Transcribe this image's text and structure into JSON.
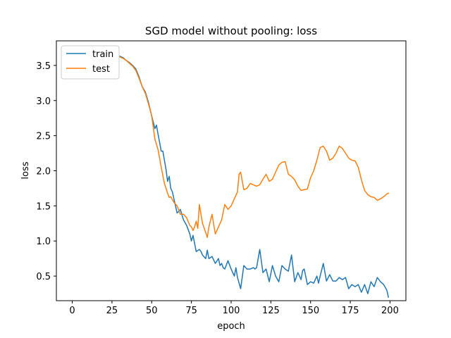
{
  "chart_data": {
    "type": "line",
    "title": "SGD model without pooling: loss",
    "xlabel": "epoch",
    "ylabel": "loss",
    "xlim": [
      -10,
      210
    ],
    "ylim": [
      0.15,
      3.85
    ],
    "xticks": [
      0,
      25,
      50,
      75,
      100,
      125,
      150,
      175,
      200
    ],
    "yticks": [
      0.5,
      1.0,
      1.5,
      2.0,
      2.5,
      3.0,
      3.5
    ],
    "xtick_labels": [
      "0",
      "25",
      "50",
      "75",
      "100",
      "125",
      "150",
      "175",
      "200"
    ],
    "ytick_labels": [
      "0.5",
      "1.0",
      "1.5",
      "2.0",
      "2.5",
      "3.0",
      "3.5"
    ],
    "grid": false,
    "legend": {
      "position": "top-left"
    },
    "series": [
      {
        "name": "train",
        "color": "#1f77b4",
        "x": [
          30,
          32,
          34,
          36,
          38,
          40,
          42,
          44,
          46,
          48,
          50,
          52,
          53,
          54,
          56,
          57,
          58,
          59,
          60,
          61,
          62,
          63,
          64,
          66,
          67,
          68,
          70,
          72,
          74,
          75,
          76,
          78,
          80,
          81,
          82,
          84,
          85,
          86,
          88,
          90,
          92,
          93,
          94,
          95,
          96,
          98,
          100,
          102,
          103,
          104,
          106,
          108,
          110,
          112,
          114,
          115,
          116,
          118,
          120,
          122,
          124,
          126,
          128,
          130,
          132,
          134,
          136,
          138,
          140,
          142,
          144,
          145,
          146,
          148,
          150,
          152,
          154,
          155,
          156,
          158,
          160,
          162,
          164,
          166,
          168,
          170,
          172,
          174,
          176,
          178,
          180,
          182,
          184,
          186,
          188,
          190,
          192,
          194,
          196,
          198,
          199
        ],
        "y": [
          3.63,
          3.61,
          3.57,
          3.54,
          3.5,
          3.45,
          3.34,
          3.2,
          3.12,
          2.97,
          2.78,
          2.6,
          2.65,
          2.52,
          2.28,
          2.28,
          2.15,
          2.02,
          1.85,
          1.92,
          1.75,
          1.7,
          1.6,
          1.4,
          1.42,
          1.45,
          1.3,
          1.22,
          1.1,
          1.0,
          1.08,
          0.85,
          0.88,
          0.85,
          0.8,
          0.75,
          0.87,
          0.75,
          0.78,
          0.68,
          0.75,
          0.65,
          0.68,
          0.62,
          0.6,
          0.72,
          0.6,
          0.5,
          0.62,
          0.48,
          0.32,
          0.65,
          0.6,
          0.6,
          0.62,
          0.6,
          0.62,
          0.88,
          0.55,
          0.6,
          0.42,
          0.65,
          0.5,
          0.42,
          0.65,
          0.6,
          0.57,
          0.8,
          0.42,
          0.55,
          0.45,
          0.58,
          0.6,
          0.38,
          0.42,
          0.4,
          0.5,
          0.4,
          0.5,
          0.68,
          0.43,
          0.52,
          0.43,
          0.43,
          0.48,
          0.45,
          0.48,
          0.32,
          0.38,
          0.35,
          0.38,
          0.27,
          0.38,
          0.25,
          0.42,
          0.35,
          0.48,
          0.42,
          0.38,
          0.3,
          0.2
        ]
      },
      {
        "name": "test",
        "color": "#ff7f0e",
        "x": [
          30,
          32,
          34,
          36,
          38,
          40,
          42,
          44,
          46,
          48,
          50,
          52,
          54,
          56,
          58,
          60,
          61,
          62,
          64,
          66,
          68,
          70,
          72,
          74,
          75,
          76,
          77,
          78,
          79,
          80,
          82,
          84,
          85,
          86,
          88,
          90,
          92,
          94,
          96,
          98,
          100,
          102,
          104,
          105,
          106,
          108,
          110,
          112,
          114,
          116,
          118,
          120,
          122,
          124,
          126,
          128,
          130,
          132,
          134,
          136,
          138,
          140,
          142,
          144,
          146,
          148,
          150,
          152,
          154,
          156,
          158,
          160,
          162,
          164,
          166,
          168,
          170,
          172,
          174,
          176,
          178,
          180,
          182,
          184,
          186,
          188,
          190,
          192,
          194,
          196,
          198,
          199
        ],
        "y": [
          3.62,
          3.6,
          3.57,
          3.53,
          3.49,
          3.43,
          3.32,
          3.2,
          3.1,
          2.95,
          2.78,
          2.45,
          2.3,
          2.05,
          1.82,
          1.68,
          1.62,
          1.63,
          1.55,
          1.5,
          1.38,
          1.38,
          1.33,
          1.22,
          1.2,
          1.15,
          1.2,
          1.28,
          1.18,
          1.52,
          1.25,
          1.12,
          1.05,
          1.2,
          1.38,
          1.1,
          1.2,
          1.3,
          1.52,
          1.45,
          1.5,
          1.6,
          1.7,
          1.95,
          1.98,
          1.73,
          1.75,
          1.82,
          1.8,
          1.78,
          1.8,
          1.88,
          1.95,
          1.85,
          1.88,
          1.98,
          2.08,
          2.12,
          2.13,
          1.95,
          1.92,
          1.87,
          1.78,
          1.72,
          1.73,
          1.74,
          1.9,
          2.0,
          2.15,
          2.33,
          2.35,
          2.28,
          2.15,
          2.18,
          2.25,
          2.35,
          2.32,
          2.25,
          2.18,
          2.15,
          2.14,
          2.05,
          1.87,
          1.72,
          1.66,
          1.63,
          1.62,
          1.58,
          1.6,
          1.63,
          1.67,
          1.68
        ]
      }
    ]
  }
}
